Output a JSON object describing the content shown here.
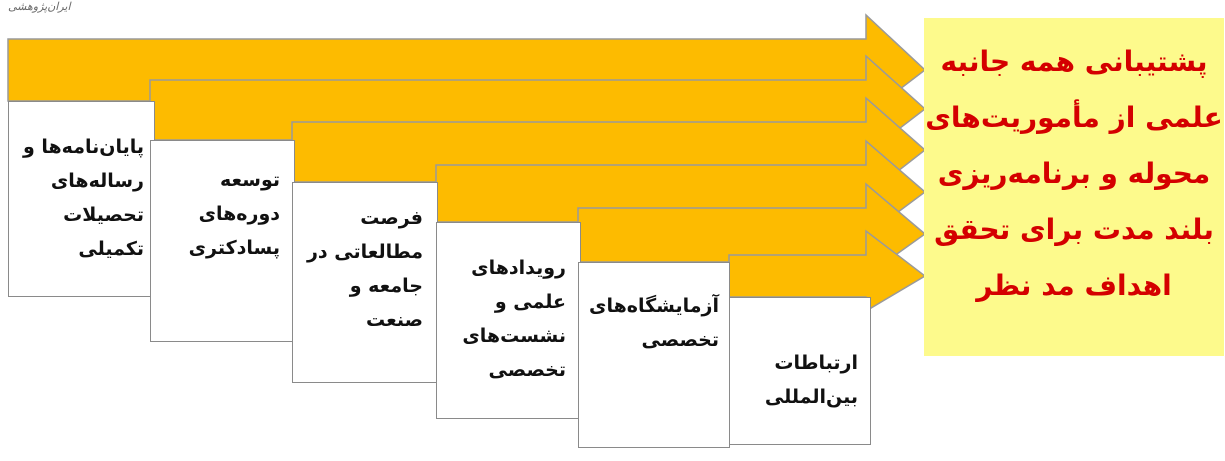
{
  "logo": "ایران‌پژوهشی",
  "colors": {
    "arrow_fill": "#fdbb00",
    "arrow_stroke": "#9a9a9a",
    "goal_bg": "#fdfa8c",
    "goal_text": "#d40000"
  },
  "steps": [
    {
      "label": "پایان‌نامه‌ها و\nرساله‌های\nتحصیلات\nتکمیلی"
    },
    {
      "label": "توسعه\nدوره‌های\nپسادکتری"
    },
    {
      "label": "فرصت\nمطالعاتی در\nجامعه و\nصنعت"
    },
    {
      "label": "رویدادهای\nعلمی و\nنشست‌های\nتخصصی"
    },
    {
      "label": "آزمایشگاه‌های\nتخصصی"
    },
    {
      "label": "ارتباطات\nبین‌المللی"
    }
  ],
  "goal": {
    "lines": [
      "پشتیبانی همه جانبه",
      "علمی از مأموریت‌های",
      "محوله و برنامه‌ریزی",
      "بلند مدت برای تحقق",
      "اهداف مد نظر"
    ]
  }
}
